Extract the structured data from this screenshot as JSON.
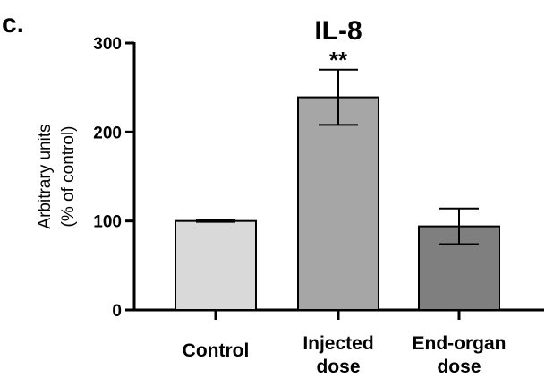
{
  "panel_label": "c.",
  "chart_data": {
    "type": "bar",
    "title": "IL-8",
    "ylabel": [
      "Arbitrary units",
      "(% of control)"
    ],
    "xlabel": "",
    "ylim": [
      0,
      300
    ],
    "yticks": [
      0,
      100,
      200,
      300
    ],
    "grid": false,
    "categories": [
      [
        "Control"
      ],
      [
        "Injected",
        "dose"
      ],
      [
        "End-organ",
        "dose"
      ]
    ],
    "values": [
      100,
      239,
      94
    ],
    "errors": [
      1,
      31,
      20
    ],
    "annotations": [
      "",
      "**",
      ""
    ],
    "colors": [
      "#d9d9d9",
      "#a6a6a6",
      "#7f7f7f"
    ]
  }
}
